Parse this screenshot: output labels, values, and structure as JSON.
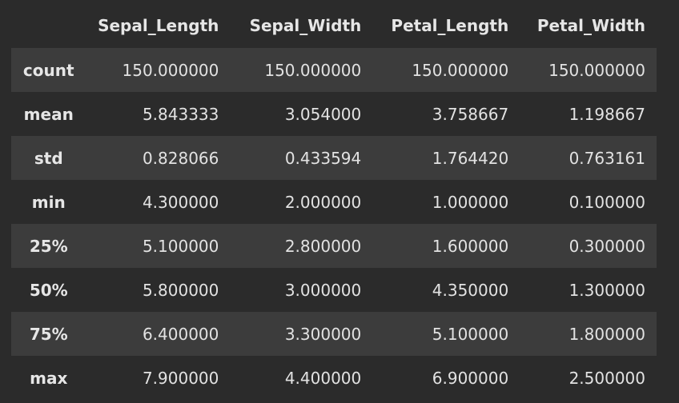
{
  "table": {
    "columns": [
      "Sepal_Length",
      "Sepal_Width",
      "Petal_Length",
      "Petal_Width"
    ],
    "rows": [
      {
        "label": "count",
        "values": [
          "150.000000",
          "150.000000",
          "150.000000",
          "150.000000"
        ]
      },
      {
        "label": "mean",
        "values": [
          "5.843333",
          "3.054000",
          "3.758667",
          "1.198667"
        ]
      },
      {
        "label": "std",
        "values": [
          "0.828066",
          "0.433594",
          "1.764420",
          "0.763161"
        ]
      },
      {
        "label": "min",
        "values": [
          "4.300000",
          "2.000000",
          "1.000000",
          "0.100000"
        ]
      },
      {
        "label": "25%",
        "values": [
          "5.100000",
          "2.800000",
          "1.600000",
          "0.300000"
        ]
      },
      {
        "label": "50%",
        "values": [
          "5.800000",
          "3.000000",
          "4.350000",
          "1.300000"
        ]
      },
      {
        "label": "75%",
        "values": [
          "6.400000",
          "3.300000",
          "5.100000",
          "1.800000"
        ]
      },
      {
        "label": "max",
        "values": [
          "7.900000",
          "4.400000",
          "6.900000",
          "2.500000"
        ]
      }
    ]
  },
  "colors": {
    "background": "#2b2b2b",
    "stripe": "#3c3c3c",
    "text": "#e6e6e6"
  }
}
